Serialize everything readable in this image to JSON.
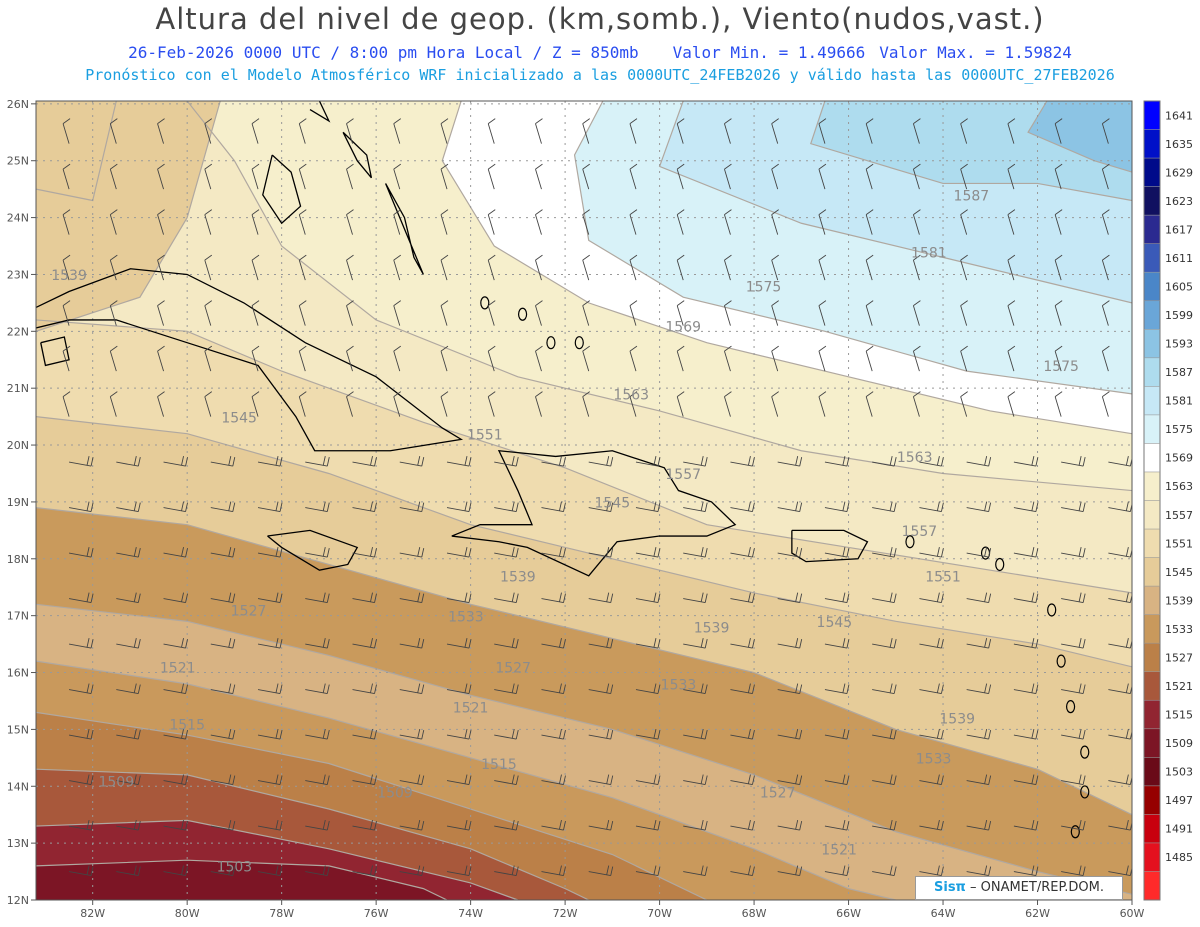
{
  "header": {
    "title": "Altura del nivel de geop. (km,somb.), Viento(nudos,vast.)",
    "date_line": "26-Feb-2026  0000 UTC / 8:00 pm Hora Local / Z = 850mb",
    "min_value": "Valor Min. = 1.49666",
    "max_value": "Valor Max. = 1.59824",
    "forecast_line": "Pronóstico con el Modelo Atmosférico WRF inicializado a las 0000UTC_24FEB2026 y válido hasta las  0000UTC_27FEB2026"
  },
  "map": {
    "lat_labels": [
      "26N",
      "25N",
      "24N",
      "23N",
      "22N",
      "21N",
      "20N",
      "19N",
      "18N",
      "17N",
      "16N",
      "15N",
      "14N",
      "13N",
      "12N"
    ],
    "lon_labels": [
      "82W",
      "80W",
      "78W",
      "76W",
      "74W",
      "72W",
      "70W",
      "68W",
      "66W",
      "64W",
      "62W",
      "60W"
    ],
    "contour_labels": [
      {
        "text": "1587",
        "lon": -63.4,
        "lat": 24.3
      },
      {
        "text": "1581",
        "lon": -64.3,
        "lat": 23.3
      },
      {
        "text": "1575",
        "lon": -67.8,
        "lat": 22.7
      },
      {
        "text": "1575",
        "lon": -61.5,
        "lat": 21.3
      },
      {
        "text": "1569",
        "lon": -69.5,
        "lat": 22.0
      },
      {
        "text": "1563",
        "lon": -70.6,
        "lat": 20.8
      },
      {
        "text": "1563",
        "lon": -64.6,
        "lat": 19.7
      },
      {
        "text": "1557",
        "lon": -69.5,
        "lat": 19.4
      },
      {
        "text": "1557",
        "lon": -64.5,
        "lat": 18.4
      },
      {
        "text": "1551",
        "lon": -73.7,
        "lat": 20.1
      },
      {
        "text": "1551",
        "lon": -64.0,
        "lat": 17.6
      },
      {
        "text": "1545",
        "lon": -78.9,
        "lat": 20.4
      },
      {
        "text": "1545",
        "lon": -71.0,
        "lat": 18.9
      },
      {
        "text": "1545",
        "lon": -66.3,
        "lat": 16.8
      },
      {
        "text": "1539",
        "lon": -82.5,
        "lat": 22.9
      },
      {
        "text": "1539",
        "lon": -73.0,
        "lat": 17.6
      },
      {
        "text": "1539",
        "lon": -68.9,
        "lat": 16.7
      },
      {
        "text": "1539",
        "lon": -63.7,
        "lat": 15.1
      },
      {
        "text": "1533",
        "lon": -74.1,
        "lat": 16.9
      },
      {
        "text": "1533",
        "lon": -69.6,
        "lat": 15.7
      },
      {
        "text": "1533",
        "lon": -64.2,
        "lat": 14.4
      },
      {
        "text": "1527",
        "lon": -78.7,
        "lat": 17.0
      },
      {
        "text": "1527",
        "lon": -73.1,
        "lat": 16.0
      },
      {
        "text": "1527",
        "lon": -67.5,
        "lat": 13.8
      },
      {
        "text": "1521",
        "lon": -80.2,
        "lat": 16.0
      },
      {
        "text": "1521",
        "lon": -74.0,
        "lat": 15.3
      },
      {
        "text": "1521",
        "lon": -66.2,
        "lat": 12.8
      },
      {
        "text": "1515",
        "lon": -80.0,
        "lat": 15.0
      },
      {
        "text": "1515",
        "lon": -73.4,
        "lat": 14.3
      },
      {
        "text": "1509",
        "lon": -81.5,
        "lat": 14.0
      },
      {
        "text": "1509",
        "lon": -75.6,
        "lat": 13.8
      },
      {
        "text": "1503",
        "lon": -79.0,
        "lat": 12.5
      }
    ]
  },
  "colorbar": {
    "levels": [
      "1641",
      "1635",
      "1629",
      "1623",
      "1617",
      "1611",
      "1605",
      "1599",
      "1593",
      "1587",
      "1581",
      "1575",
      "1569",
      "1563",
      "1557",
      "1551",
      "1545",
      "1539",
      "1533",
      "1527",
      "1521",
      "1515",
      "1509",
      "1503",
      "1497",
      "1491",
      "1485"
    ],
    "colors": [
      "#0000ff",
      "#0010c8",
      "#000a8a",
      "#101060",
      "#2b2a90",
      "#3a5ab8",
      "#4a86c8",
      "#6aa6d8",
      "#8cc4e4",
      "#aedcee",
      "#c6e8f6",
      "#d8f2f8",
      "#ffffff",
      "#f6efcc",
      "#f4e9c4",
      "#efdcaf",
      "#e6cc99",
      "#d8b383",
      "#c9995c",
      "#bb8048",
      "#a8583b",
      "#912531",
      "#7c1525",
      "#6a0a18",
      "#960000",
      "#c8000e",
      "#e4101e",
      "#ff2a2a"
    ]
  },
  "credit": {
    "brand": "Sisπ",
    "org": " – ONAMET/REP.DOM."
  }
}
